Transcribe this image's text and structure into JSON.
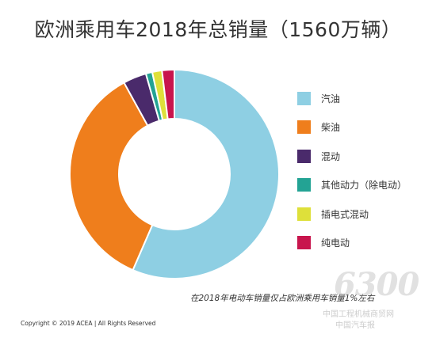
{
  "chart_data": {
    "type": "pie",
    "title": "欧洲乘用车2018年总销量（1560万辆）",
    "donut": true,
    "legend_position": "right",
    "slices": [
      {
        "label": "汽油",
        "value": 56.5,
        "color": "#8ecfe3"
      },
      {
        "label": "柴油",
        "value": 35.5,
        "color": "#ef7e1c"
      },
      {
        "label": "混动",
        "value": 3.6,
        "color": "#4a2a6b"
      },
      {
        "label": "其他动力（除电动）",
        "value": 1.0,
        "color": "#23a394"
      },
      {
        "label": "插电式混动",
        "value": 1.5,
        "color": "#dee03a"
      },
      {
        "label": "纯电动",
        "value": 1.9,
        "color": "#c8154d"
      }
    ],
    "annotation": "在2018年电动车销量仅占欧洲乘用车销量1%左右"
  },
  "footer": {
    "copyright": "Copyright © 2019 ACEA | All Rights Reserved"
  },
  "watermark": {
    "number": "6300",
    "line1": "中国工程机械商贸网",
    "line2": "中国汽车报"
  }
}
